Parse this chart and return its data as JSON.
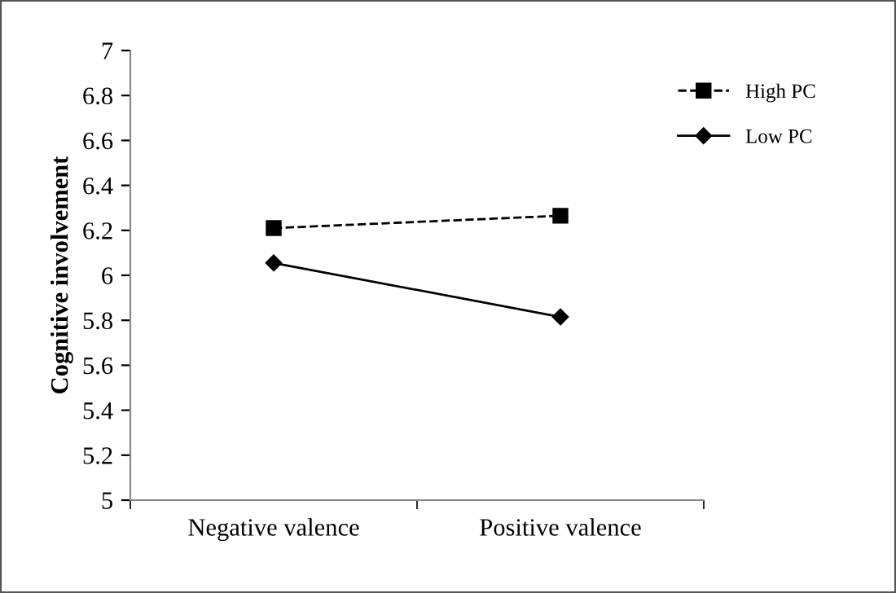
{
  "chart_data": {
    "type": "line",
    "ylabel": "Cognitive involvement",
    "categories": [
      "Negative valence",
      "Positive valence"
    ],
    "series": [
      {
        "name": "High PC",
        "color": "#000000",
        "values": [
          6.21,
          6.265
        ],
        "marker": "square",
        "line_style": "dashed"
      },
      {
        "name": "Low PC",
        "color": "#000000",
        "values": [
          6.055,
          5.815
        ],
        "marker": "diamond",
        "line_style": "solid"
      }
    ],
    "ylim": [
      5,
      7
    ],
    "yticks": [
      5,
      5.2,
      5.4,
      5.6,
      5.8,
      6,
      6.2,
      6.4,
      6.6,
      6.8,
      7
    ],
    "grid": false,
    "legend": "top right"
  }
}
